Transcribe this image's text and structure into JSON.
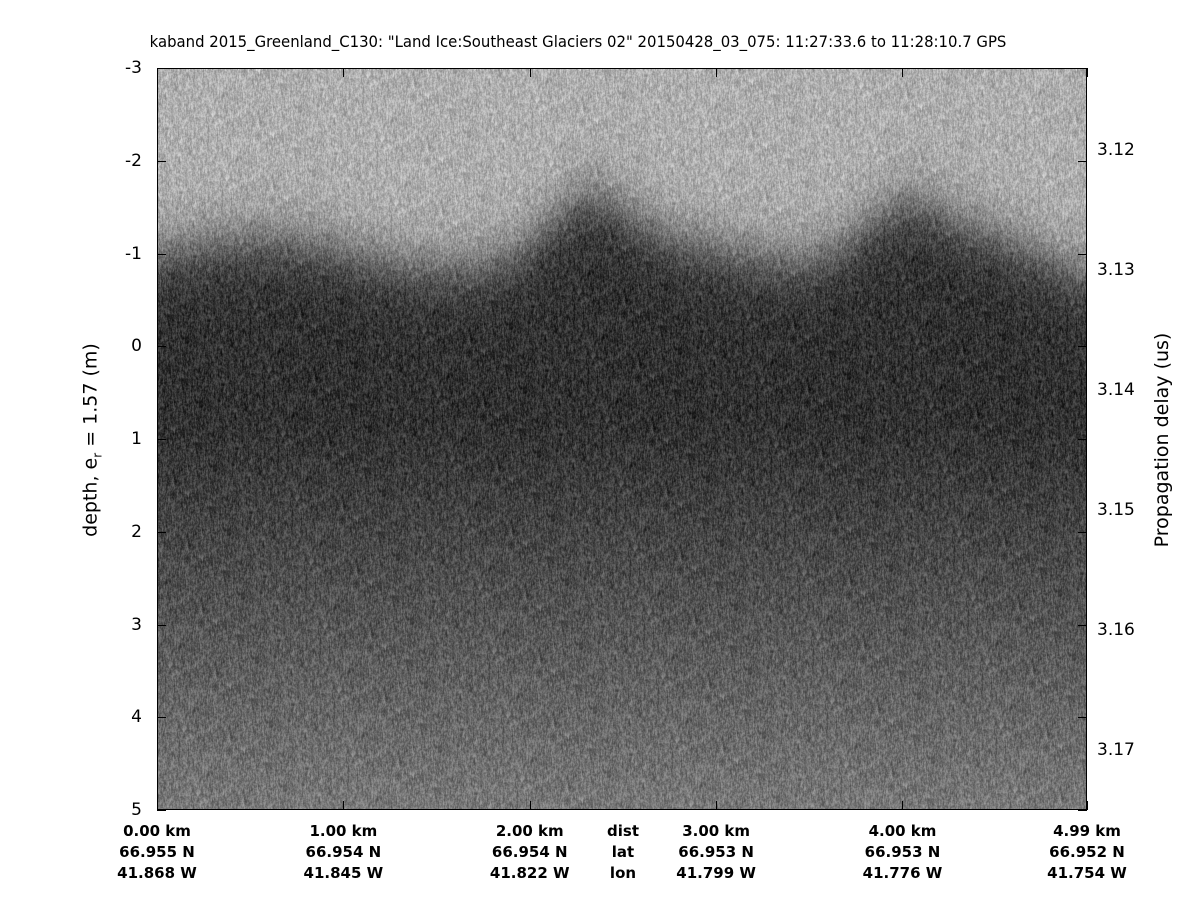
{
  "chart_data": {
    "type": "heatmap",
    "colormap": "gray",
    "title": "kaband 2015_Greenland_C130: \"Land Ice:Southeast  Glaciers 02\"  20150428_03_075: 11:27:33.6 to 11:28:10.7 GPS",
    "ylabel_prefix": "depth, e",
    "ylabel_sub": "r",
    "ylabel_suffix": " = 1.57 (m)",
    "y2label": "Propagation delay (us)",
    "ylim": [
      -3,
      5
    ],
    "y_reversed": true,
    "y_ticks": [
      "-3",
      "-2",
      "-1",
      "0",
      "1",
      "2",
      "3",
      "4",
      "5"
    ],
    "y2lim": [
      3.1132,
      3.175
    ],
    "y2_ticks": [
      "3.12",
      "3.13",
      "3.14",
      "3.15",
      "3.16",
      "3.17"
    ],
    "xlim_km": [
      0,
      4.99
    ],
    "x_ticks_km": [
      0,
      1,
      2,
      3,
      4,
      4.99
    ],
    "x_rows": [
      {
        "name": "dist",
        "labels": [
          "0.00 km",
          "1.00 km",
          "2.00 km",
          "3.00 km",
          "4.00 km",
          "4.99 km"
        ]
      },
      {
        "name": "lat",
        "labels": [
          "66.955 N",
          "66.954 N",
          "66.954 N",
          "66.953 N",
          "66.953 N",
          "66.952 N"
        ]
      },
      {
        "name": "lon",
        "labels": [
          "41.868 W",
          "41.845 W",
          "41.822 W",
          "41.799 W",
          "41.776 W",
          "41.754 W"
        ]
      }
    ]
  }
}
